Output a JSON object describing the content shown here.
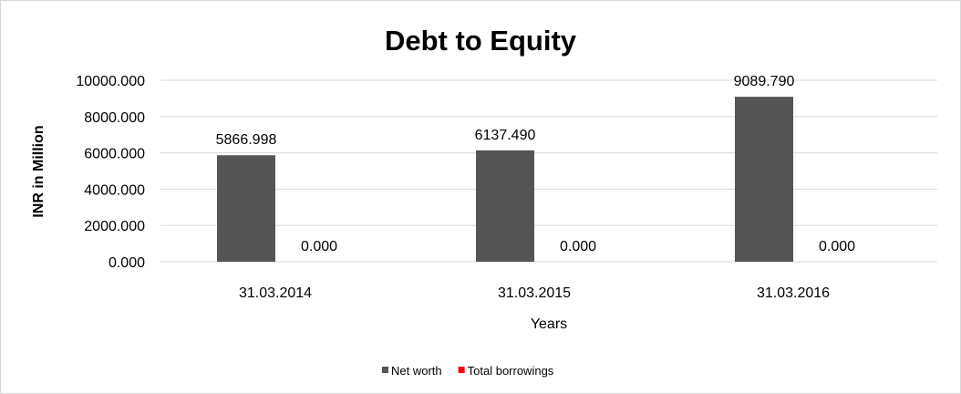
{
  "chart_data": {
    "type": "bar",
    "title": "Debt to Equity",
    "xlabel": "Years",
    "ylabel": "INR in Million",
    "categories": [
      "31.03.2014",
      "31.03.2015",
      "31.03.2016"
    ],
    "series": [
      {
        "name": "Net worth",
        "values": [
          5866.998,
          6137.49,
          9089.79
        ],
        "labels": [
          "5866.998",
          "6137.490",
          "9089.790"
        ],
        "color": "#555555"
      },
      {
        "name": "Total borrowings",
        "values": [
          0,
          0,
          0
        ],
        "labels": [
          "0.000",
          "0.000",
          "0.000"
        ],
        "color": "#ff0000"
      }
    ],
    "ylim": [
      0,
      10000
    ],
    "yticks": [
      "0.000",
      "2000.000",
      "4000.000",
      "6000.000",
      "8000.000",
      "10000.000"
    ],
    "grid": true,
    "legend": "bottom"
  }
}
